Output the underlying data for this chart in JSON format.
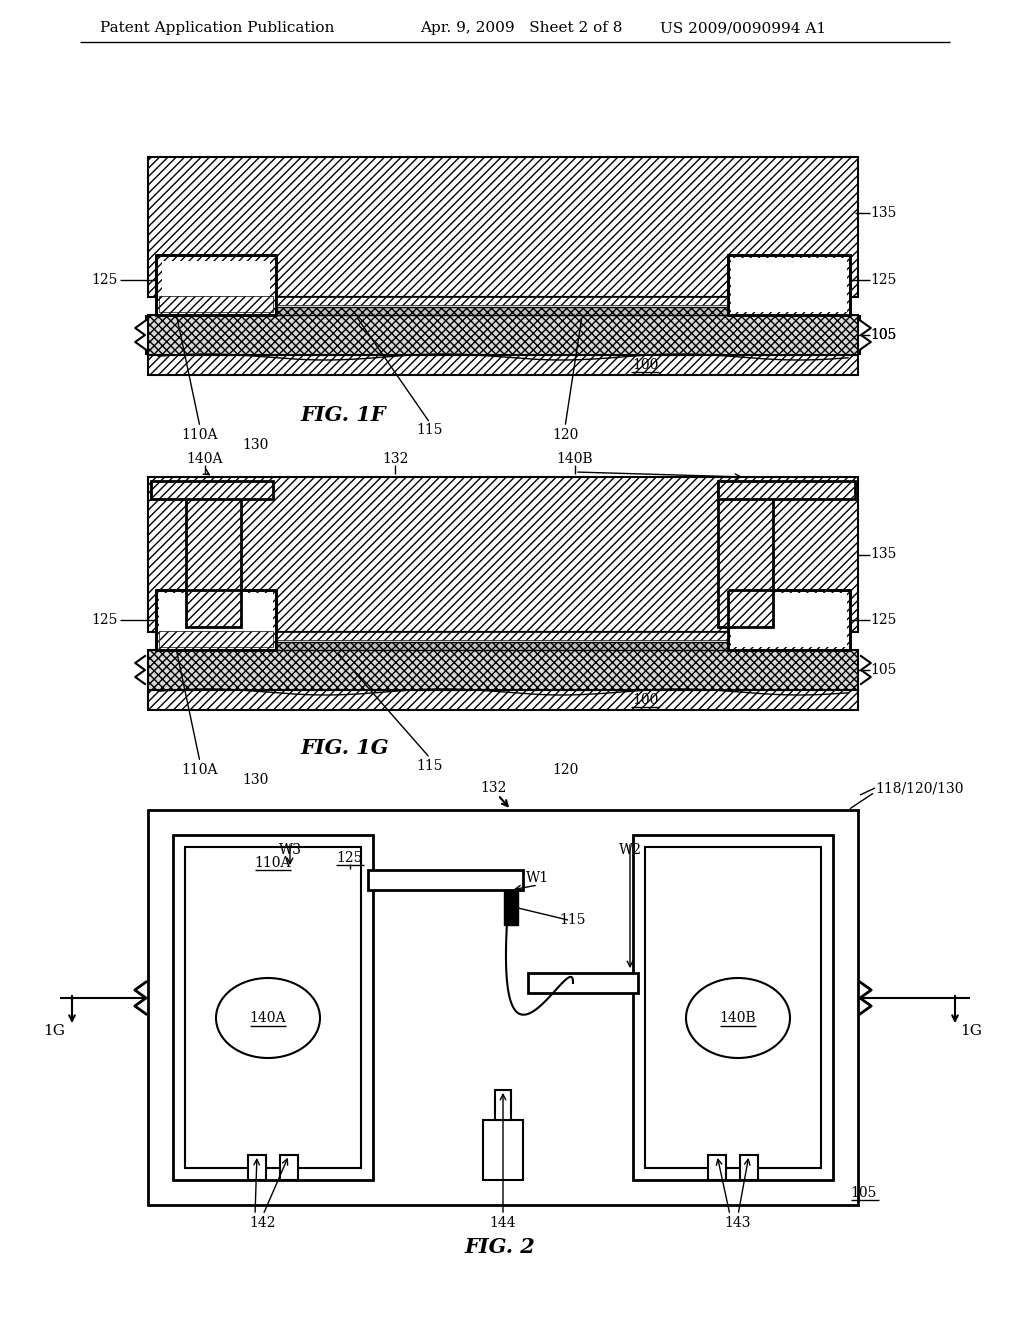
{
  "bg_color": "#ffffff",
  "header_text": "Patent Application Publication",
  "header_date": "Apr. 9, 2009   Sheet 2 of 8",
  "header_patent": "US 2009/0090994 A1",
  "fig1f_label": "FIG. 1F",
  "fig1g_label": "FIG. 1G",
  "fig2_label": "FIG. 2"
}
